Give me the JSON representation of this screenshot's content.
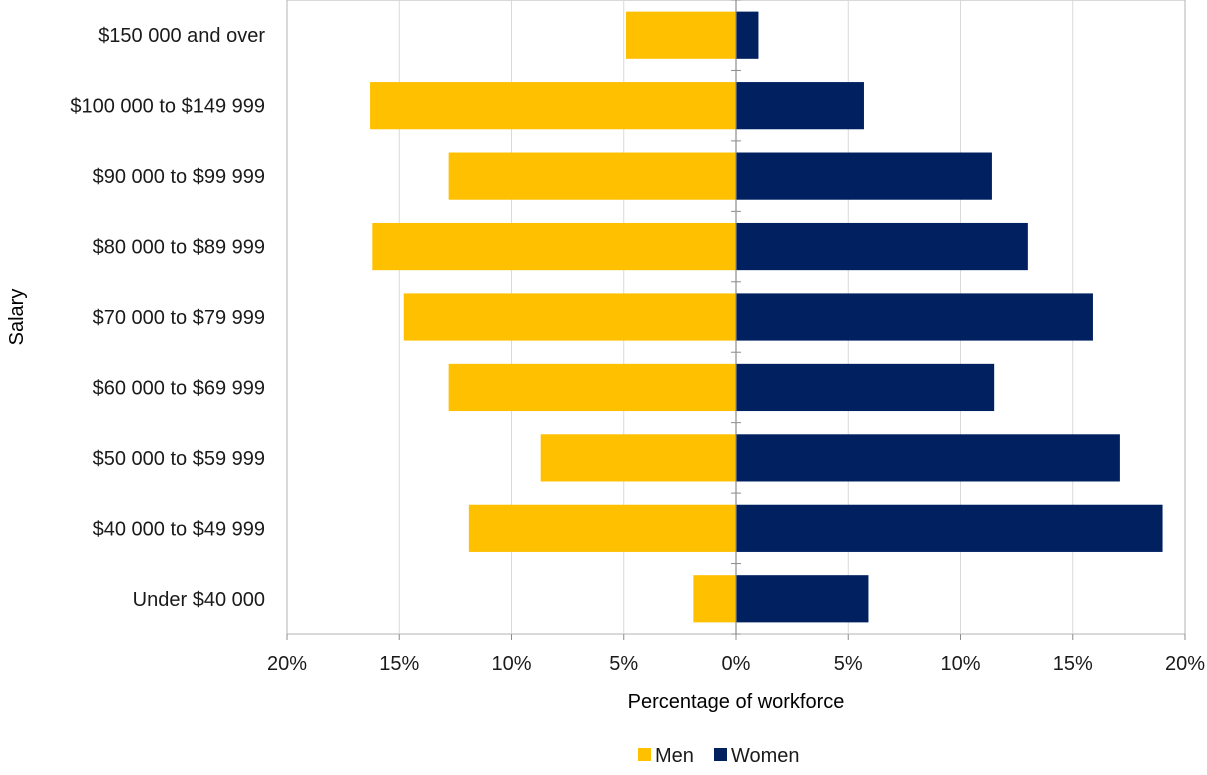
{
  "chart_data": {
    "type": "bar",
    "orientation": "horizontal",
    "layout": "diverging",
    "categories": [
      "$150 000 and over",
      "$100 000 to $149 999",
      "$90 000 to $99 999",
      "$80 000 to $89 999",
      "$70 000 to $79 999",
      "$60 000 to $69 999",
      "$50 000 to $59 999",
      "$40 000 to $49 999",
      "Under $40 000"
    ],
    "series": [
      {
        "name": "Men",
        "color": "#FFC000",
        "side": "left",
        "values": [
          4.9,
          16.3,
          12.8,
          16.2,
          14.8,
          12.8,
          8.7,
          11.9,
          1.9
        ]
      },
      {
        "name": "Women",
        "color": "#002060",
        "side": "right",
        "values": [
          1.0,
          5.7,
          11.4,
          13.0,
          15.9,
          11.5,
          17.1,
          19.0,
          5.9
        ]
      }
    ],
    "xlabel": "Percentage of workforce",
    "ylabel": "Salary",
    "xlim": [
      -20,
      20
    ],
    "x_ticks": [
      -20,
      -15,
      -10,
      -5,
      0,
      5,
      10,
      15,
      20
    ],
    "x_tick_labels": [
      "20%",
      "15%",
      "10%",
      "5%",
      "0%",
      "5%",
      "10%",
      "15%",
      "20%"
    ],
    "grid": "vertical",
    "legend_position": "bottom-center"
  }
}
